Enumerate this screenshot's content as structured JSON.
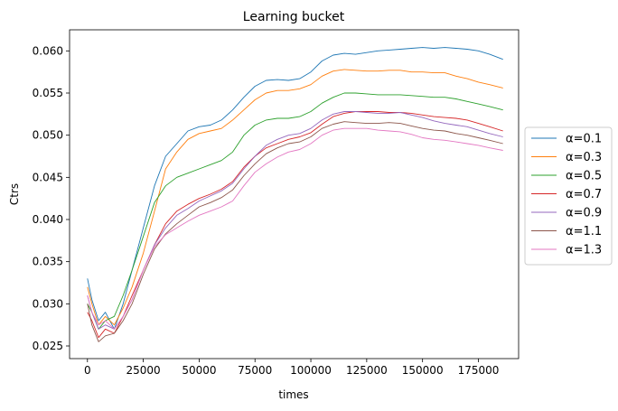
{
  "chart_data": {
    "type": "line",
    "title": "Learning bucket",
    "xlabel": "times",
    "ylabel": "Ctrs",
    "xlim": [
      -8000,
      193000
    ],
    "ylim": [
      0.0235,
      0.0625
    ],
    "xticks": [
      0,
      25000,
      50000,
      75000,
      100000,
      125000,
      150000,
      175000
    ],
    "xtick_labels": [
      "0",
      "25000",
      "50000",
      "75000",
      "100000",
      "125000",
      "150000",
      "175000"
    ],
    "yticks": [
      0.025,
      0.03,
      0.035,
      0.04,
      0.045,
      0.05,
      0.055,
      0.06
    ],
    "ytick_labels": [
      "0.025",
      "0.030",
      "0.035",
      "0.040",
      "0.045",
      "0.050",
      "0.055",
      "0.060"
    ],
    "grid": false,
    "legend_position": "outside-right",
    "x": [
      0,
      2000,
      5000,
      8000,
      12000,
      16000,
      20000,
      25000,
      30000,
      35000,
      40000,
      45000,
      50000,
      55000,
      60000,
      65000,
      70000,
      75000,
      80000,
      85000,
      90000,
      95000,
      100000,
      105000,
      110000,
      115000,
      120000,
      125000,
      130000,
      135000,
      140000,
      145000,
      150000,
      155000,
      160000,
      165000,
      170000,
      175000,
      180000,
      186000
    ],
    "series": [
      {
        "name": "α=0.1",
        "color": "#1f77b4",
        "values": [
          0.033,
          0.0305,
          0.028,
          0.029,
          0.027,
          0.03,
          0.034,
          0.039,
          0.044,
          0.0475,
          0.049,
          0.0505,
          0.051,
          0.0512,
          0.0518,
          0.053,
          0.0545,
          0.0558,
          0.0565,
          0.0566,
          0.0565,
          0.0567,
          0.0575,
          0.0588,
          0.0595,
          0.0597,
          0.0596,
          0.0598,
          0.06,
          0.0601,
          0.0602,
          0.0603,
          0.0604,
          0.0603,
          0.0604,
          0.0603,
          0.0602,
          0.06,
          0.0596,
          0.059
        ]
      },
      {
        "name": "α=0.3",
        "color": "#ff7f0e",
        "values": [
          0.032,
          0.03,
          0.0275,
          0.0285,
          0.0275,
          0.0295,
          0.032,
          0.036,
          0.041,
          0.046,
          0.048,
          0.0495,
          0.0502,
          0.0505,
          0.0508,
          0.0518,
          0.053,
          0.0542,
          0.055,
          0.0553,
          0.0553,
          0.0555,
          0.056,
          0.057,
          0.0576,
          0.0578,
          0.0577,
          0.0576,
          0.0576,
          0.0577,
          0.0577,
          0.0575,
          0.0575,
          0.0574,
          0.0574,
          0.057,
          0.0567,
          0.0563,
          0.056,
          0.0556
        ]
      },
      {
        "name": "α=0.5",
        "color": "#2ca02c",
        "values": [
          0.03,
          0.029,
          0.027,
          0.028,
          0.0285,
          0.031,
          0.034,
          0.038,
          0.042,
          0.044,
          0.045,
          0.0455,
          0.046,
          0.0465,
          0.047,
          0.048,
          0.05,
          0.0512,
          0.0518,
          0.052,
          0.052,
          0.0522,
          0.0528,
          0.0538,
          0.0545,
          0.055,
          0.055,
          0.0549,
          0.0548,
          0.0548,
          0.0548,
          0.0547,
          0.0546,
          0.0545,
          0.0545,
          0.0543,
          0.054,
          0.0537,
          0.0534,
          0.053
        ]
      },
      {
        "name": "α=0.7",
        "color": "#d62728",
        "values": [
          0.029,
          0.028,
          0.026,
          0.027,
          0.0265,
          0.0285,
          0.031,
          0.034,
          0.037,
          0.0395,
          0.041,
          0.0418,
          0.0425,
          0.043,
          0.0436,
          0.0445,
          0.0462,
          0.0475,
          0.0485,
          0.049,
          0.0495,
          0.0498,
          0.0503,
          0.0513,
          0.0522,
          0.0526,
          0.0528,
          0.0528,
          0.0528,
          0.0527,
          0.0527,
          0.0526,
          0.0524,
          0.0522,
          0.0521,
          0.052,
          0.0518,
          0.0514,
          0.051,
          0.0505
        ]
      },
      {
        "name": "α=0.9",
        "color": "#9467bd",
        "values": [
          0.031,
          0.029,
          0.027,
          0.0275,
          0.027,
          0.0285,
          0.0305,
          0.034,
          0.037,
          0.039,
          0.0405,
          0.0413,
          0.0422,
          0.0428,
          0.0434,
          0.0443,
          0.046,
          0.0475,
          0.0488,
          0.0495,
          0.05,
          0.0502,
          0.0508,
          0.0518,
          0.0525,
          0.0528,
          0.0528,
          0.0527,
          0.0526,
          0.0526,
          0.0527,
          0.0524,
          0.0521,
          0.0517,
          0.0514,
          0.0512,
          0.051,
          0.0506,
          0.0502,
          0.0498
        ]
      },
      {
        "name": "α=1.1",
        "color": "#8c564b",
        "values": [
          0.03,
          0.0275,
          0.0255,
          0.0262,
          0.0265,
          0.028,
          0.03,
          0.0335,
          0.0365,
          0.0383,
          0.0395,
          0.0405,
          0.0415,
          0.042,
          0.0426,
          0.0435,
          0.0452,
          0.0466,
          0.0478,
          0.0485,
          0.049,
          0.0492,
          0.0498,
          0.0508,
          0.0513,
          0.0516,
          0.0515,
          0.0514,
          0.0514,
          0.0515,
          0.0514,
          0.0511,
          0.0508,
          0.0506,
          0.0505,
          0.0502,
          0.05,
          0.0497,
          0.0494,
          0.049
        ]
      },
      {
        "name": "α=1.3",
        "color": "#e377c2",
        "values": [
          0.031,
          0.029,
          0.0275,
          0.028,
          0.027,
          0.0285,
          0.0305,
          0.034,
          0.0368,
          0.0382,
          0.039,
          0.0398,
          0.0405,
          0.041,
          0.0415,
          0.0422,
          0.044,
          0.0456,
          0.0466,
          0.0474,
          0.048,
          0.0483,
          0.049,
          0.05,
          0.0506,
          0.0508,
          0.0508,
          0.0508,
          0.0506,
          0.0505,
          0.0504,
          0.0501,
          0.0497,
          0.0495,
          0.0494,
          0.0492,
          0.049,
          0.0488,
          0.0485,
          0.0482
        ]
      }
    ]
  }
}
